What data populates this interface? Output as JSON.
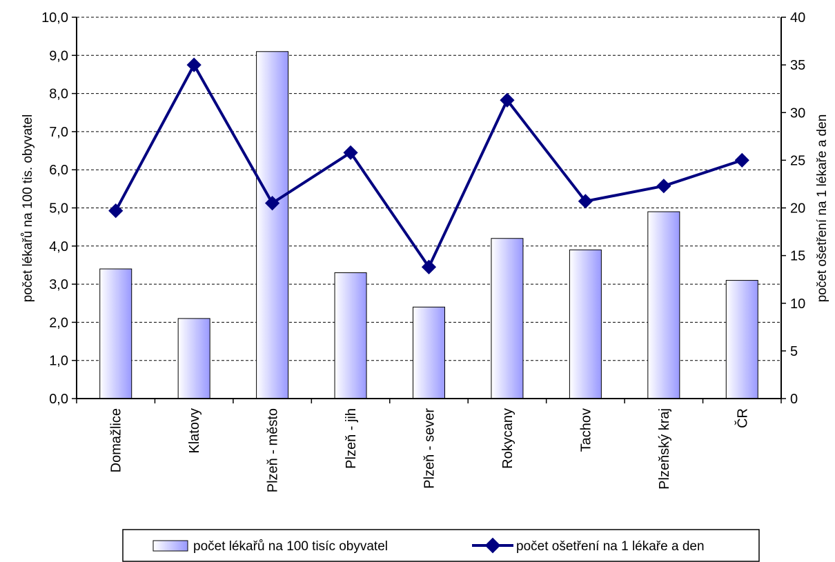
{
  "chart_data": {
    "type": "bar",
    "title": "",
    "categories": [
      "Domažlice",
      "Klatovy",
      "Plzeň - město",
      "Plzeň - jih",
      "Plzeň - sever",
      "Rokycany",
      "Tachov",
      "Plzeňský kraj",
      "ČR"
    ],
    "series": [
      {
        "name": "počet lékařů na 100 tisíc obyvatel",
        "type": "bar",
        "axis": "left",
        "values": [
          3.4,
          2.1,
          9.1,
          3.3,
          2.4,
          4.2,
          3.9,
          4.9,
          3.1
        ]
      },
      {
        "name": "počet ošetření na 1 lékaře a den",
        "type": "line",
        "axis": "right",
        "values": [
          19.7,
          35.0,
          20.5,
          25.8,
          13.8,
          31.3,
          20.7,
          22.3,
          25.0
        ]
      }
    ],
    "ylabel": "počet lékařů na 100 tis. obyvatel",
    "y2label": "počet ošetření na 1 lékaře a den",
    "ylim": [
      0,
      10
    ],
    "y2lim": [
      0,
      40
    ],
    "yticks": [
      "0,0",
      "1,0",
      "2,0",
      "3,0",
      "4,0",
      "5,0",
      "6,0",
      "7,0",
      "8,0",
      "9,0",
      "10,0"
    ],
    "y2ticks": [
      "0",
      "5",
      "10",
      "15",
      "20",
      "25",
      "30",
      "35",
      "40"
    ],
    "grid": "horizontal dashed",
    "legend_position": "bottom",
    "colors": {
      "bar_light": "#ffffff",
      "bar_dark": "#9999ff",
      "line": "#000080",
      "grid": "#000000"
    }
  }
}
